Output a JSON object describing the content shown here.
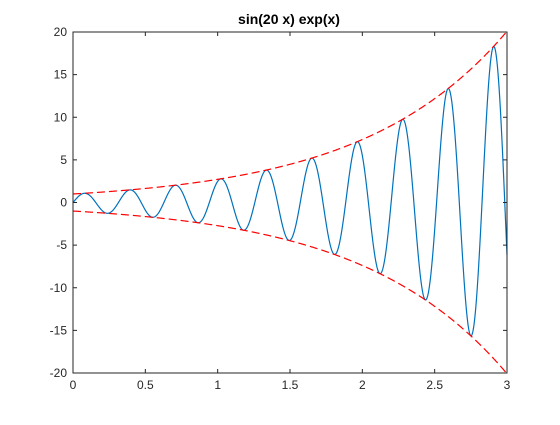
{
  "chart_data": {
    "type": "line",
    "title": "sin(20  x)  exp(x)",
    "xlabel": "",
    "ylabel": "",
    "xlim": [
      0,
      3
    ],
    "ylim": [
      -20,
      20
    ],
    "xticks": [
      0,
      0.5,
      1,
      1.5,
      2,
      2.5,
      3
    ],
    "xtick_labels": [
      "0",
      "0.5",
      "1",
      "1.5",
      "2",
      "2.5",
      "3"
    ],
    "yticks": [
      -20,
      -15,
      -10,
      -5,
      0,
      5,
      10,
      15,
      20
    ],
    "ytick_labels": [
      "-20",
      "-15",
      "-10",
      "-5",
      "0",
      "5",
      "10",
      "15",
      "20"
    ],
    "grid": false,
    "legend": "none",
    "series": [
      {
        "function": "sin(20*x)*exp(x)",
        "style": "solid",
        "color": "#0072BD"
      },
      {
        "function": "exp(x)",
        "style": "dashed",
        "color": "#FF0000"
      },
      {
        "function": "-exp(x)",
        "style": "dashed",
        "color": "#FF0000"
      }
    ]
  }
}
